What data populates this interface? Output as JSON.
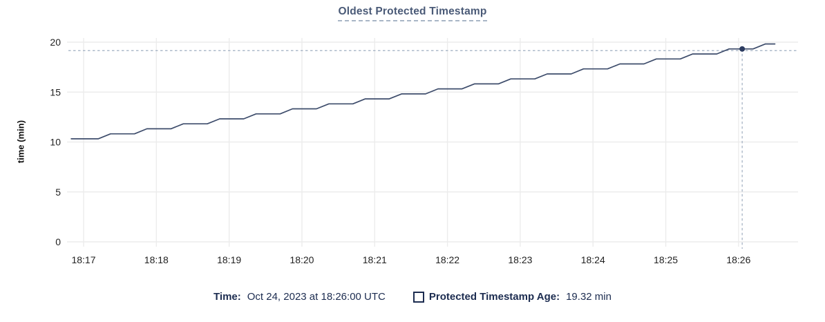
{
  "header": {
    "title": "Oldest Protected Timestamp"
  },
  "legend": {
    "time_label": "Time:",
    "time_value": "Oct 24, 2023 at 18:26:00 UTC",
    "series_label": "Protected Timestamp Age:",
    "series_value": "19.32 min",
    "series_swatch": "empty-square-checkbox"
  },
  "colors": {
    "title_text": "#4a5a77",
    "title_underline": "#a8b6c6",
    "legend_text": "#1c2c50",
    "series_line": "#3d4c6b",
    "hover_point": "#2c3c60",
    "crosshair": "#9fadc0",
    "gridline": "#ececec",
    "axis_text": "#1f1f1f"
  },
  "chart_data": {
    "type": "line",
    "title": "Oldest Protected Timestamp",
    "xlabel": "",
    "ylabel": "time (min)",
    "ylim": [
      0,
      20
    ],
    "y_ticks": [
      0,
      5,
      10,
      15,
      20
    ],
    "x_tick_labels": [
      "18:17",
      "18:18",
      "18:19",
      "18:20",
      "18:21",
      "18:22",
      "18:23",
      "18:24",
      "18:25",
      "18:26"
    ],
    "grid": true,
    "x_unit": "minutes after 18:17 UTC",
    "series": [
      {
        "name": "Protected Timestamp Age",
        "unit": "min",
        "points": [
          [
            -0.17,
            10.32
          ],
          [
            0.2,
            10.32
          ],
          [
            0.37,
            10.82
          ],
          [
            0.7,
            10.82
          ],
          [
            0.87,
            11.32
          ],
          [
            1.2,
            11.32
          ],
          [
            1.37,
            11.82
          ],
          [
            1.7,
            11.82
          ],
          [
            1.87,
            12.32
          ],
          [
            2.2,
            12.32
          ],
          [
            2.37,
            12.82
          ],
          [
            2.7,
            12.82
          ],
          [
            2.87,
            13.32
          ],
          [
            3.2,
            13.32
          ],
          [
            3.37,
            13.82
          ],
          [
            3.7,
            13.82
          ],
          [
            3.87,
            14.32
          ],
          [
            4.2,
            14.32
          ],
          [
            4.37,
            14.82
          ],
          [
            4.7,
            14.82
          ],
          [
            4.87,
            15.32
          ],
          [
            5.2,
            15.32
          ],
          [
            5.37,
            15.82
          ],
          [
            5.7,
            15.82
          ],
          [
            5.87,
            16.32
          ],
          [
            6.2,
            16.32
          ],
          [
            6.37,
            16.82
          ],
          [
            6.7,
            16.82
          ],
          [
            6.87,
            17.32
          ],
          [
            7.2,
            17.32
          ],
          [
            7.37,
            17.82
          ],
          [
            7.7,
            17.82
          ],
          [
            7.87,
            18.32
          ],
          [
            8.2,
            18.32
          ],
          [
            8.37,
            18.82
          ],
          [
            8.7,
            18.82
          ],
          [
            8.87,
            19.32
          ],
          [
            9.2,
            19.32
          ],
          [
            9.37,
            19.82
          ],
          [
            9.5,
            19.82
          ]
        ]
      }
    ],
    "hover_point": {
      "time": "18:26:00",
      "t": 9.05,
      "value": 19.32,
      "crosshair_y_value": 19.15
    }
  }
}
